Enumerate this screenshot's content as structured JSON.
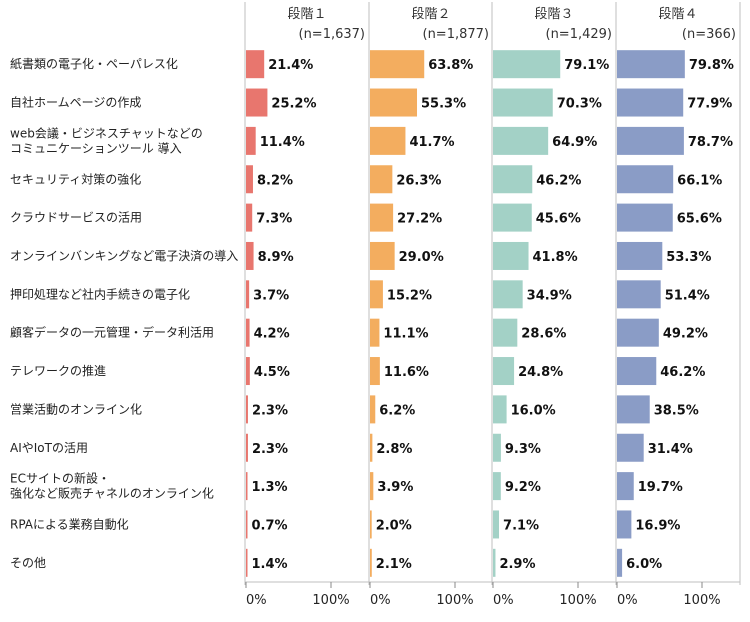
{
  "chart_data": {
    "type": "bar",
    "orientation": "horizontal",
    "categories": [
      [
        "紙書類の電子化・ペーパレス化"
      ],
      [
        "自社ホームページの作成"
      ],
      [
        "web会議・ビジネスチャットなどの",
        "コミュニケーションツール 導入"
      ],
      [
        "セキュリティ対策の強化"
      ],
      [
        "クラウドサービスの活用"
      ],
      [
        "オンラインバンキングなど電子決済の導入"
      ],
      [
        "押印処理など社内手続きの電子化"
      ],
      [
        "顧客データの一元管理・データ利活用"
      ],
      [
        "テレワークの推進"
      ],
      [
        "営業活動のオンライン化"
      ],
      [
        "AIやIoTの活用"
      ],
      [
        "ECサイトの新設・",
        "強化など販売チャネルのオンライン化"
      ],
      [
        "RPAによる業務自動化"
      ],
      [
        "その他"
      ]
    ],
    "series": [
      {
        "name": "段階１",
        "n": "(n=1,637)",
        "color": "#e8766e",
        "values": [
          21.4,
          25.2,
          11.4,
          8.2,
          7.3,
          8.9,
          3.7,
          4.2,
          4.5,
          2.3,
          2.3,
          1.3,
          0.7,
          1.4
        ],
        "labels": [
          "21.4%",
          "25.2%",
          "11.4%",
          "8.2%",
          "7.3%",
          "8.9%",
          "3.7%",
          "4.2%",
          "4.5%",
          "2.3%",
          "2.3%",
          "1.3%",
          "0.7%",
          "1.4%"
        ]
      },
      {
        "name": "段階２",
        "n": "(n=1,877)",
        "color": "#f3ad5f",
        "values": [
          63.8,
          55.3,
          41.7,
          26.3,
          27.2,
          29.0,
          15.2,
          11.1,
          11.6,
          6.2,
          2.8,
          3.9,
          2.0,
          2.1
        ],
        "labels": [
          "63.8%",
          "55.3%",
          "41.7%",
          "26.3%",
          "27.2%",
          "29.0%",
          "15.2%",
          "11.1%",
          "11.6%",
          "6.2%",
          "2.8%",
          "3.9%",
          "2.0%",
          "2.1%"
        ]
      },
      {
        "name": "段階３",
        "n": "(n=1,429)",
        "color": "#a3d1c6",
        "values": [
          79.1,
          70.3,
          64.9,
          46.2,
          45.6,
          41.8,
          34.9,
          28.6,
          24.8,
          16.0,
          9.3,
          9.2,
          7.1,
          2.9
        ],
        "labels": [
          "79.1%",
          "70.3%",
          "64.9%",
          "46.2%",
          "45.6%",
          "41.8%",
          "34.9%",
          "28.6%",
          "24.8%",
          "16.0%",
          "9.3%",
          "9.2%",
          "7.1%",
          "2.9%"
        ]
      },
      {
        "name": "段階４",
        "n": "(n=366)",
        "color": "#8a9cc6",
        "values": [
          79.8,
          77.9,
          78.7,
          66.1,
          65.6,
          53.3,
          51.4,
          49.2,
          46.2,
          38.5,
          31.4,
          19.7,
          16.9,
          6.0
        ],
        "labels": [
          "79.8%",
          "77.9%",
          "78.7%",
          "66.1%",
          "65.6%",
          "53.3%",
          "51.4%",
          "49.2%",
          "46.2%",
          "38.5%",
          "31.4%",
          "19.7%",
          "16.9%",
          "6.0%"
        ]
      }
    ],
    "xlim": [
      0,
      100
    ],
    "xtick_labels": [
      "0%",
      "100%"
    ],
    "grid": "vertical separators between panels"
  }
}
